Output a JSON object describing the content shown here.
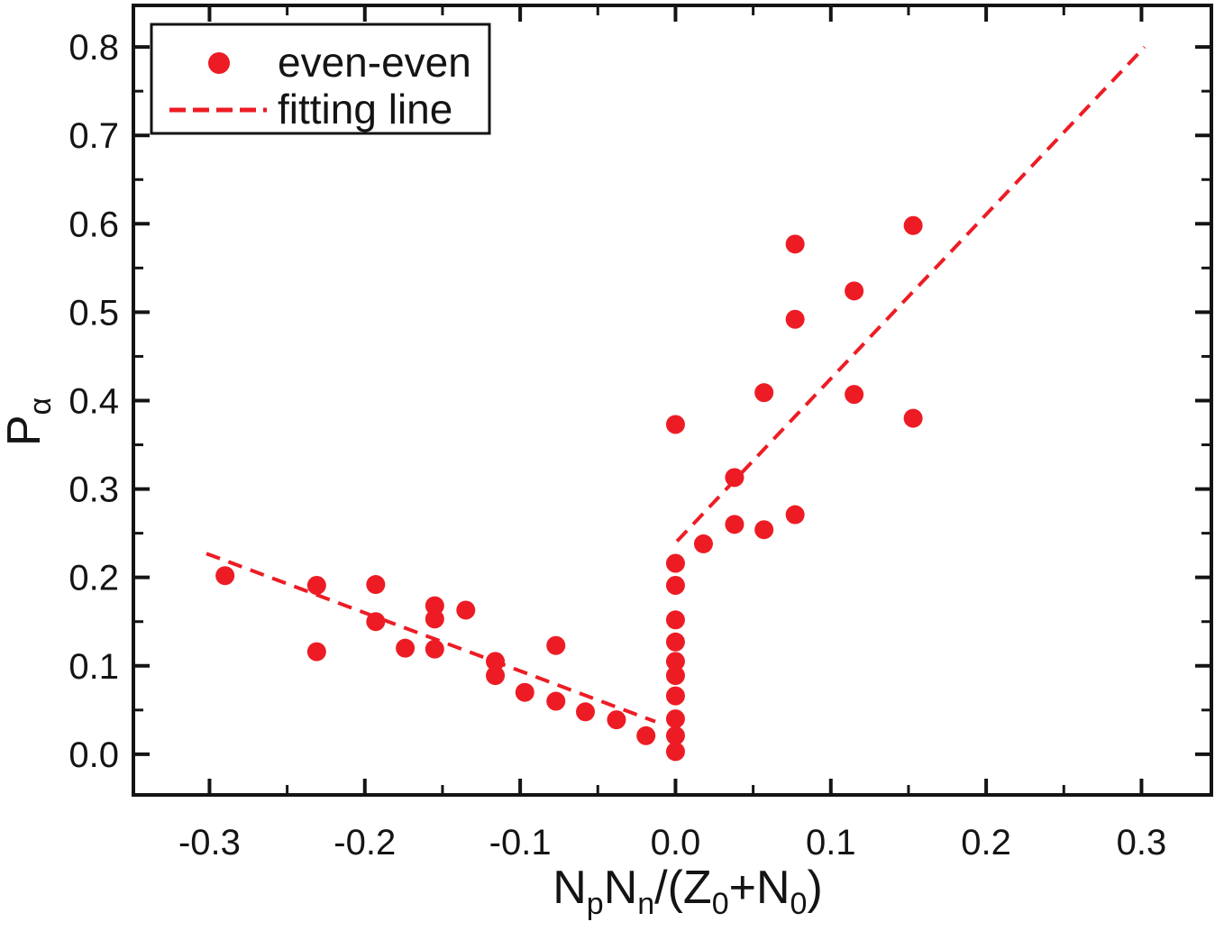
{
  "figure": {
    "background": "#ffffff",
    "axis_color": "#141414",
    "accent_color": "#ed1c24"
  },
  "legend": {
    "position": "top-left",
    "entries": [
      {
        "label": "even-even",
        "marker": "filled-circle",
        "color": "#ed1c24"
      },
      {
        "label": "fitting line",
        "marker": "dashed-line",
        "color": "#ed1c24"
      }
    ]
  },
  "chart_data": {
    "type": "scatter",
    "title": "",
    "xlabel": "NpNn/(Z0+N0)",
    "ylabel": "Pa",
    "xlabel_parts": [
      {
        "t": "N"
      },
      {
        "t": "p",
        "sub": true
      },
      {
        "t": "N"
      },
      {
        "t": "n",
        "sub": true
      },
      {
        "t": "/(Z"
      },
      {
        "t": "0",
        "sub": true
      },
      {
        "t": "+N"
      },
      {
        "t": "0",
        "sub": true
      },
      {
        "t": ")"
      }
    ],
    "ylabel_parts": [
      {
        "t": "P"
      },
      {
        "t": "α",
        "sub": true
      }
    ],
    "xlim": [
      -0.349,
      0.345
    ],
    "ylim": [
      -0.046,
      0.847
    ],
    "grid": false,
    "x_major_ticks": [
      -0.3,
      -0.2,
      -0.1,
      0.0,
      0.1,
      0.2,
      0.3
    ],
    "x_tick_labels": [
      "-0.3",
      "-0.2",
      "-0.1",
      "0.0",
      "0.1",
      "0.2",
      "0.3"
    ],
    "x_minor_ticks": [
      -0.25,
      -0.15,
      -0.05,
      0.05,
      0.15,
      0.25
    ],
    "y_major_ticks": [
      0.0,
      0.1,
      0.2,
      0.3,
      0.4,
      0.5,
      0.6,
      0.7,
      0.8
    ],
    "y_tick_labels": [
      "0.0",
      "0.1",
      "0.2",
      "0.3",
      "0.4",
      "0.5",
      "0.6",
      "0.7",
      "0.8"
    ],
    "y_minor_ticks": [
      0.05,
      0.15,
      0.25,
      0.35,
      0.45,
      0.55,
      0.65,
      0.75
    ],
    "series": [
      {
        "name": "even-even",
        "marker": "circle",
        "color": "#ed1c24",
        "points": [
          [
            -0.29,
            0.202
          ],
          [
            -0.231,
            0.191
          ],
          [
            -0.231,
            0.116
          ],
          [
            -0.193,
            0.192
          ],
          [
            -0.193,
            0.15
          ],
          [
            -0.174,
            0.12
          ],
          [
            -0.155,
            0.168
          ],
          [
            -0.155,
            0.153
          ],
          [
            -0.155,
            0.119
          ],
          [
            -0.135,
            0.163
          ],
          [
            -0.116,
            0.105
          ],
          [
            -0.116,
            0.089
          ],
          [
            -0.097,
            0.07
          ],
          [
            -0.077,
            0.123
          ],
          [
            -0.077,
            0.06
          ],
          [
            -0.058,
            0.048
          ],
          [
            -0.038,
            0.039
          ],
          [
            -0.019,
            0.021
          ],
          [
            0.0,
            0.373
          ],
          [
            0.0,
            0.216
          ],
          [
            0.0,
            0.191
          ],
          [
            0.0,
            0.152
          ],
          [
            0.0,
            0.127
          ],
          [
            0.0,
            0.105
          ],
          [
            0.0,
            0.089
          ],
          [
            0.0,
            0.066
          ],
          [
            0.0,
            0.04
          ],
          [
            0.0,
            0.021
          ],
          [
            0.0,
            0.003
          ],
          [
            0.018,
            0.238
          ],
          [
            0.038,
            0.313
          ],
          [
            0.038,
            0.26
          ],
          [
            0.057,
            0.254
          ],
          [
            0.077,
            0.271
          ],
          [
            0.057,
            0.409
          ],
          [
            0.115,
            0.407
          ],
          [
            0.077,
            0.577
          ],
          [
            0.077,
            0.492
          ],
          [
            0.115,
            0.524
          ],
          [
            0.153,
            0.598
          ],
          [
            0.153,
            0.38
          ]
        ]
      }
    ],
    "fit_lines": [
      {
        "name": "fitting line",
        "style": "dashed",
        "color": "#ed1c24",
        "from": [
          -0.302,
          0.227
        ],
        "to": [
          -0.013,
          0.037
        ]
      },
      {
        "name": "fitting line",
        "style": "dashed",
        "color": "#ed1c24",
        "from": [
          0.001,
          0.241
        ],
        "to": [
          0.302,
          0.8
        ]
      }
    ]
  }
}
